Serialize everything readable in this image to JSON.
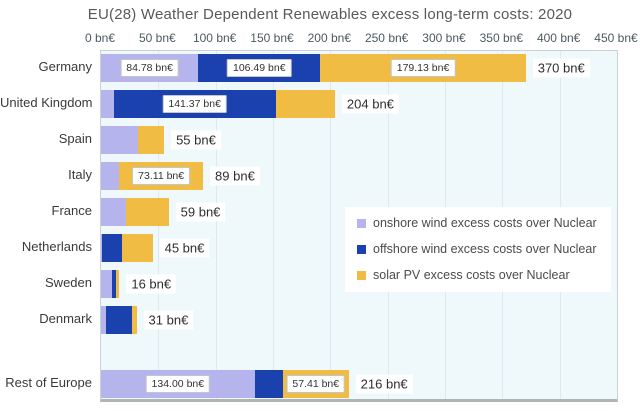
{
  "title": "EU(28) Weather Dependent Renewables excess long-term costs:  2020",
  "chart_data": {
    "type": "bar",
    "orientation": "horizontal",
    "title": "EU(28) Weather Dependent Renewables excess long-term costs:  2020",
    "unit": "bn€",
    "xlim": [
      0,
      450
    ],
    "grid": true,
    "plot_background": "#eff8fa",
    "x_tick_values": [
      0,
      50,
      100,
      150,
      200,
      250,
      300,
      350,
      400,
      450
    ],
    "x_ticks": [
      "0 bn€",
      "50 bn€",
      "100 bn€",
      "150 bn€",
      "200 bn€",
      "250 bn€",
      "300 bn€",
      "350 bn€",
      "400 bn€",
      "450 bn€"
    ],
    "categories": [
      "Germany",
      "United Kingdom",
      "Spain",
      "Italy",
      "France",
      "Netherlands",
      "Sweden",
      "Denmark",
      "Rest of Europe"
    ],
    "gap_before_category": "Rest of Europe",
    "series": [
      {
        "name": "onshore wind excess costs over Nuclear",
        "color": "#b6b4ed",
        "values": [
          84.78,
          11.0,
          32.0,
          15.89,
          22.0,
          1.0,
          10.0,
          4.0,
          134.0
        ]
      },
      {
        "name": "offshore wind excess costs over Nuclear",
        "color": "#1a41ae",
        "values": [
          106.49,
          141.37,
          0,
          0,
          0,
          17.0,
          3.0,
          23.0,
          24.59
        ]
      },
      {
        "name": "solar PV excess costs over Nuclear",
        "color": "#f1bc44",
        "values": [
          179.13,
          51.63,
          23.0,
          73.11,
          37.0,
          27.0,
          3.0,
          4.0,
          57.41
        ]
      }
    ],
    "segment_labels": [
      [
        "84.78 bn€",
        "106.49 bn€",
        "179.13 bn€"
      ],
      [
        null,
        "141.37 bn€",
        null
      ],
      [
        null,
        null,
        null
      ],
      [
        null,
        null,
        "73.11 bn€"
      ],
      [
        null,
        null,
        null
      ],
      [
        null,
        null,
        null
      ],
      [
        null,
        null,
        null
      ],
      [
        null,
        null,
        null
      ],
      [
        "134.00 bn€",
        null,
        "57.41 bn€"
      ]
    ],
    "total_labels": [
      "370 bn€",
      "204 bn€",
      "55 bn€",
      "89 bn€",
      "59 bn€",
      "45 bn€",
      "16 bn€",
      "31 bn€",
      "216 bn€"
    ],
    "legend_position": "inside-right"
  }
}
